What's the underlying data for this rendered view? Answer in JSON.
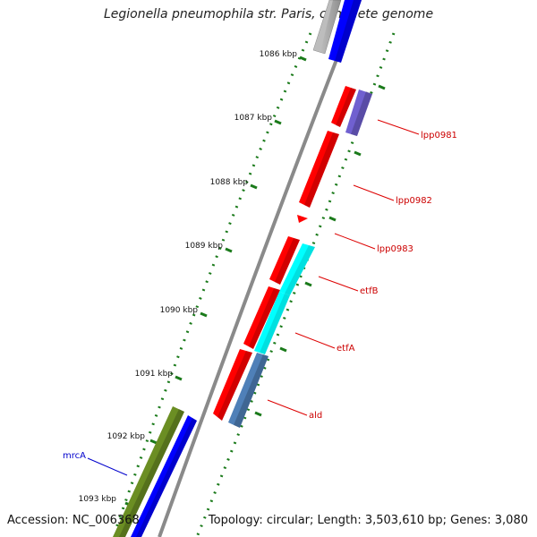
{
  "title": "Legionella pneumophila str. Paris, complete genome",
  "footer": {
    "accession": "Accession: NC_006368",
    "topology": "Topology: circular; Length: 3,503,610 bp; Genes: 3,080"
  },
  "ticks": [
    "1086 kbp",
    "1087 kbp",
    "1088 kbp",
    "1089 kbp",
    "1090 kbp",
    "1091 kbp",
    "1092 kbp",
    "1093 kbp"
  ],
  "genes": [
    {
      "name": "lpp0981",
      "color": "#cc0000"
    },
    {
      "name": "lpp0982",
      "color": "#cc0000"
    },
    {
      "name": "lpp0983",
      "color": "#cc0000"
    },
    {
      "name": "etfB",
      "color": "#cc0000"
    },
    {
      "name": "etfA",
      "color": "#cc0000"
    },
    {
      "name": "ald",
      "color": "#cc0000"
    },
    {
      "name": "mrcA",
      "color": "#0000cc"
    }
  ],
  "colors": {
    "red_cds": "#ff0000",
    "blue_cds": "#0000ff",
    "cyan_cds": "#00ffff",
    "steel_cds": "#4f80b8",
    "purple_cds": "#7060d0",
    "green_cds": "#6b8e23",
    "grey_cds": "#bdbdbd",
    "backbone": "#888888",
    "gc_dots": "#1a7a1a"
  }
}
